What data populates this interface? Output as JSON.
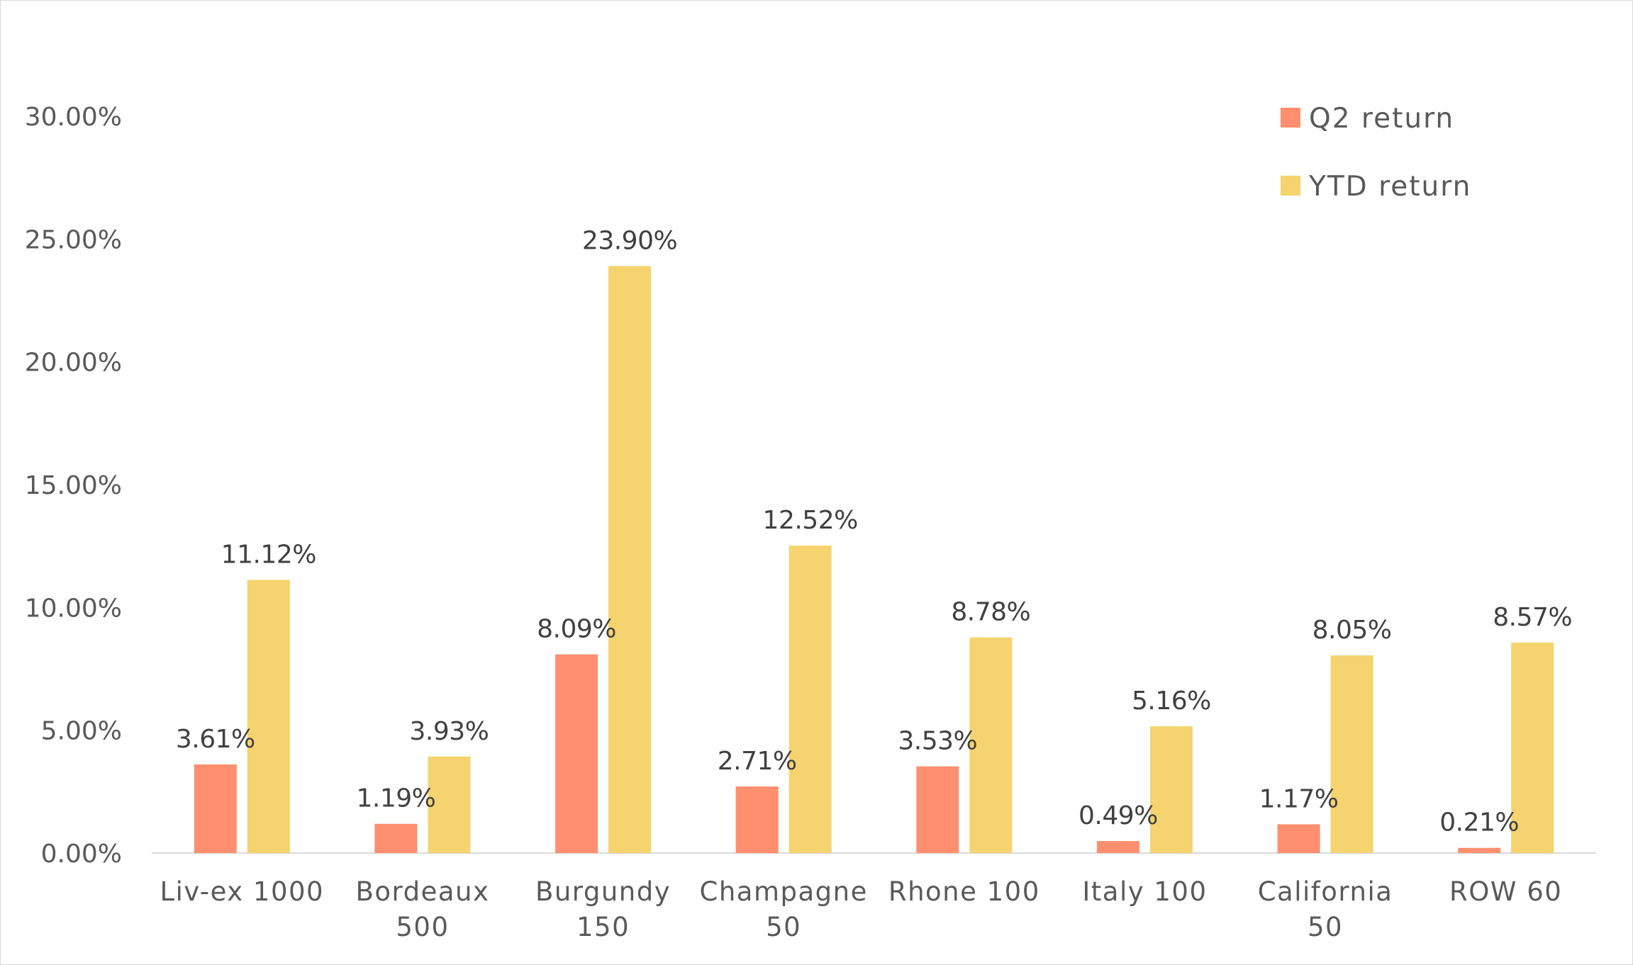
{
  "chart_data": {
    "type": "bar",
    "categories": [
      [
        "Liv-ex 1000"
      ],
      [
        "Bordeaux",
        "500"
      ],
      [
        "Burgundy",
        "150"
      ],
      [
        "Champagne",
        "50"
      ],
      [
        "Rhone 100"
      ],
      [
        "Italy 100"
      ],
      [
        "California",
        "50"
      ],
      [
        "ROW 60"
      ]
    ],
    "series": [
      {
        "name": "Q2 return",
        "color": "#FF8F6E",
        "values": [
          3.61,
          1.19,
          8.09,
          2.71,
          3.53,
          0.49,
          1.17,
          0.21
        ],
        "labels": [
          "3.61%",
          "1.19%",
          "8.09%",
          "2.71%",
          "3.53%",
          "0.49%",
          "1.17%",
          "0.21%"
        ]
      },
      {
        "name": "YTD return",
        "color": "#F5D36E",
        "values": [
          11.12,
          3.93,
          23.9,
          12.52,
          8.78,
          5.16,
          8.05,
          8.57
        ],
        "labels": [
          "11.12%",
          "3.93%",
          "23.90%",
          "12.52%",
          "8.78%",
          "5.16%",
          "8.05%",
          "8.57%"
        ]
      }
    ],
    "yticks": [
      "0.00%",
      "5.00%",
      "10.00%",
      "15.00%",
      "20.00%",
      "25.00%",
      "30.00%"
    ],
    "ylim": [
      0,
      30
    ],
    "grid": false,
    "legend_position": "top-right",
    "axis_color": "#d9d9d9"
  }
}
